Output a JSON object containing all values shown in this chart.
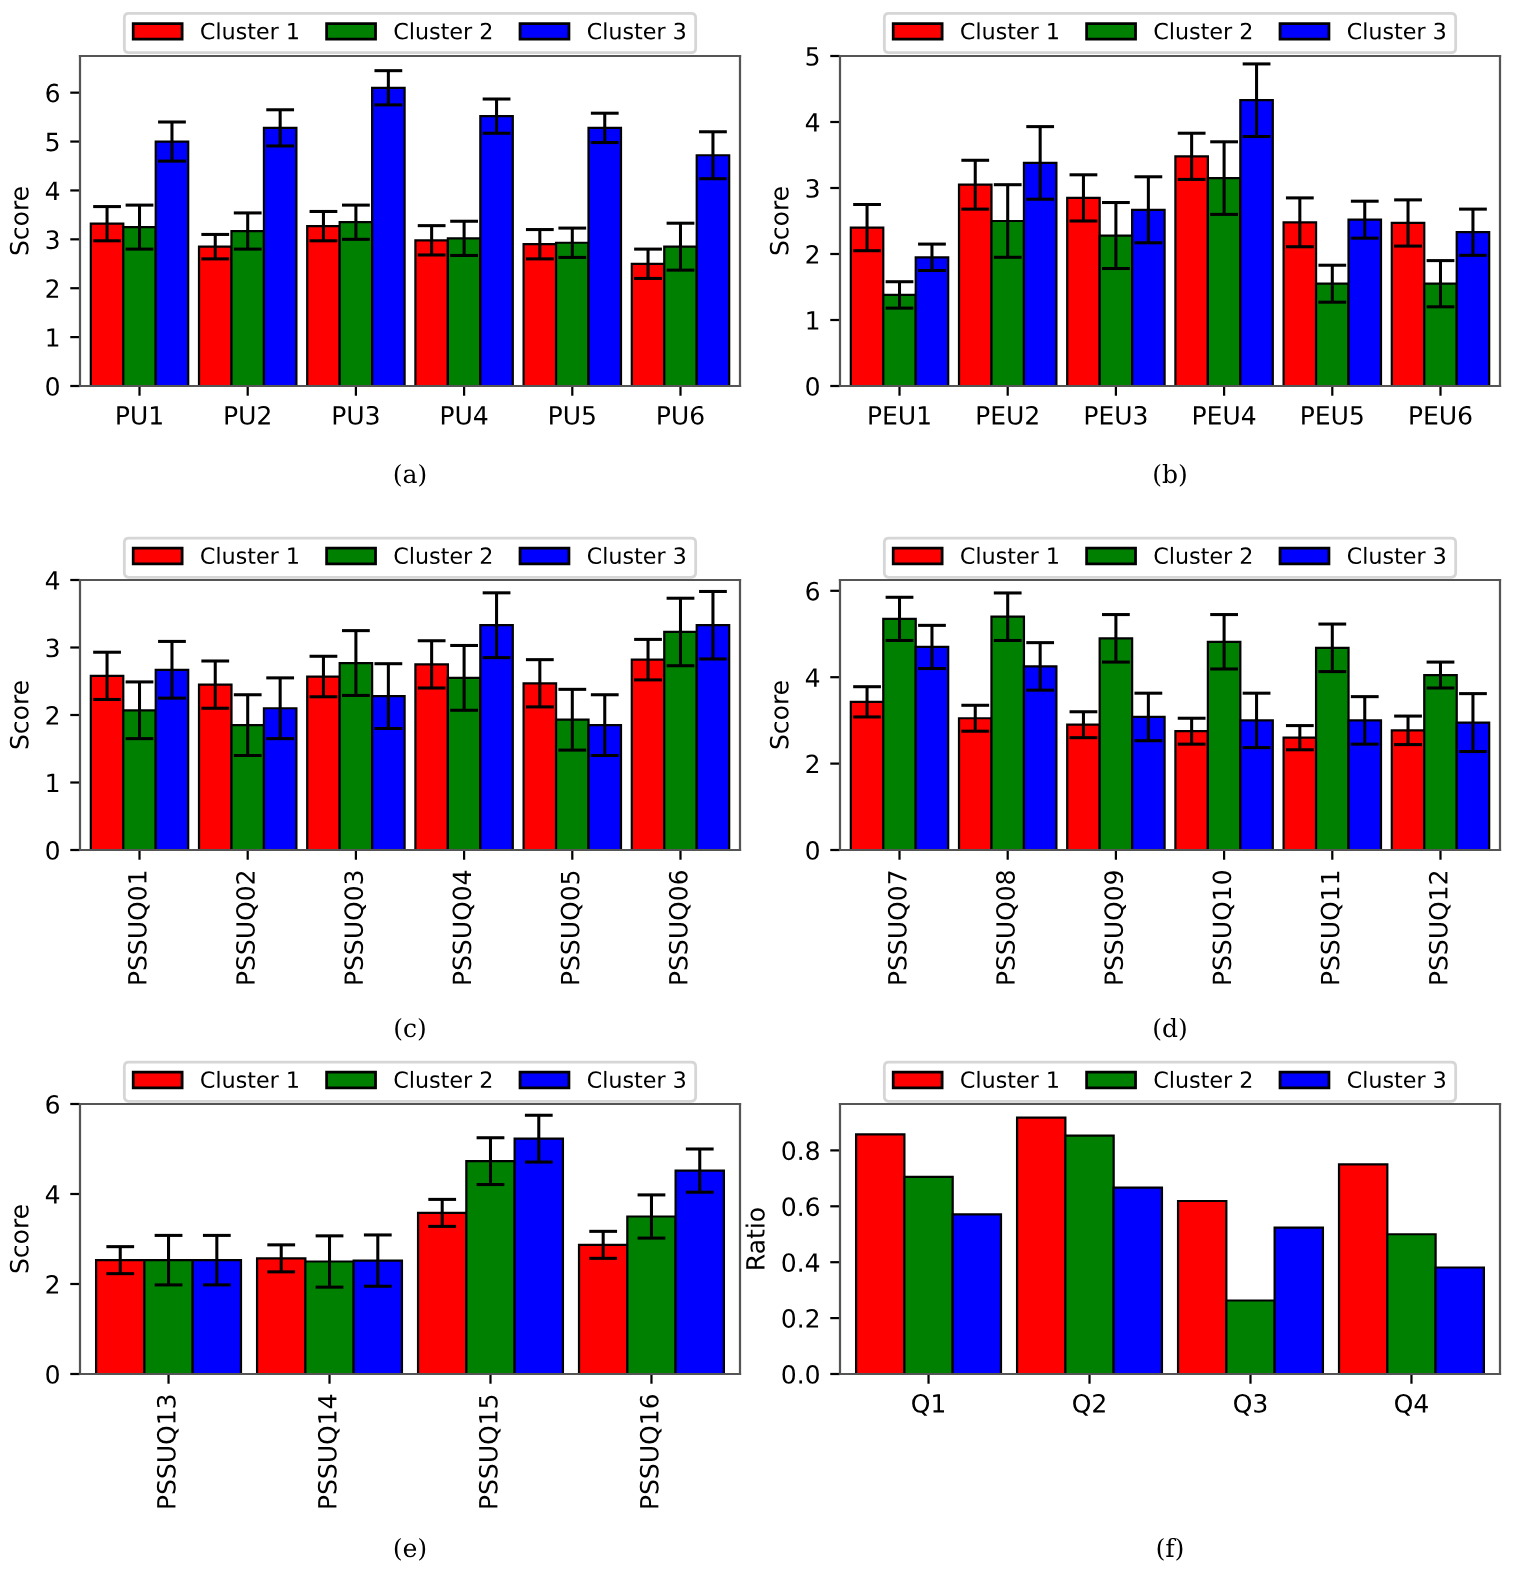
{
  "chart_data": [
    {
      "type": "bar",
      "categories": [
        "PU1",
        "PU2",
        "PU3",
        "PU4",
        "PU5",
        "PU6"
      ],
      "ylabel": "Score",
      "ylim": [
        0,
        6.75
      ],
      "yticks": [
        0,
        1,
        2,
        3,
        4,
        5,
        6
      ],
      "grid": false,
      "legend": "top",
      "annotations": [
        "(a)"
      ],
      "series": [
        {
          "name": "Cluster 1",
          "color": "#ff0000",
          "values": [
            3.32,
            2.85,
            3.27,
            2.98,
            2.9,
            2.5
          ],
          "errors": [
            0.35,
            0.25,
            0.3,
            0.3,
            0.3,
            0.3
          ]
        },
        {
          "name": "Cluster 2",
          "color": "#008000",
          "values": [
            3.25,
            3.17,
            3.35,
            3.02,
            2.93,
            2.85
          ],
          "errors": [
            0.45,
            0.37,
            0.35,
            0.35,
            0.3,
            0.48
          ]
        },
        {
          "name": "Cluster 3",
          "color": "#0000ff",
          "values": [
            5.0,
            5.28,
            6.1,
            5.52,
            5.28,
            4.72
          ],
          "errors": [
            0.4,
            0.37,
            0.35,
            0.35,
            0.3,
            0.48
          ]
        }
      ]
    },
    {
      "type": "bar",
      "categories": [
        "PEU1",
        "PEU2",
        "PEU3",
        "PEU4",
        "PEU5",
        "PEU6"
      ],
      "ylabel": "Score",
      "ylim": [
        0,
        5
      ],
      "yticks": [
        0,
        1,
        2,
        3,
        4,
        5
      ],
      "grid": false,
      "legend": "top",
      "annotations": [
        "(b)"
      ],
      "series": [
        {
          "name": "Cluster 1",
          "color": "#ff0000",
          "values": [
            2.4,
            3.05,
            2.85,
            3.48,
            2.48,
            2.47
          ],
          "errors": [
            0.35,
            0.37,
            0.35,
            0.35,
            0.37,
            0.35
          ]
        },
        {
          "name": "Cluster 2",
          "color": "#008000",
          "values": [
            1.38,
            2.5,
            2.28,
            3.15,
            1.55,
            1.55
          ],
          "errors": [
            0.2,
            0.55,
            0.5,
            0.55,
            0.28,
            0.35
          ]
        },
        {
          "name": "Cluster 3",
          "color": "#0000ff",
          "values": [
            1.95,
            3.38,
            2.67,
            4.33,
            2.52,
            2.33
          ],
          "errors": [
            0.2,
            0.55,
            0.5,
            0.55,
            0.28,
            0.35
          ]
        }
      ]
    },
    {
      "type": "bar",
      "categories": [
        "PSSUQ01",
        "PSSUQ02",
        "PSSUQ03",
        "PSSUQ04",
        "PSSUQ05",
        "PSSUQ06"
      ],
      "ylabel": "Score",
      "ylim": [
        0,
        4
      ],
      "yticks": [
        0,
        1,
        2,
        3,
        4
      ],
      "grid": false,
      "legend": "top",
      "annotations": [
        "(c)"
      ],
      "series": [
        {
          "name": "Cluster 1",
          "color": "#ff0000",
          "values": [
            2.58,
            2.45,
            2.57,
            2.75,
            2.47,
            2.82
          ],
          "errors": [
            0.35,
            0.35,
            0.3,
            0.35,
            0.35,
            0.3
          ]
        },
        {
          "name": "Cluster 2",
          "color": "#008000",
          "values": [
            2.07,
            1.85,
            2.77,
            2.55,
            1.93,
            3.23
          ],
          "errors": [
            0.42,
            0.45,
            0.48,
            0.48,
            0.45,
            0.5
          ]
        },
        {
          "name": "Cluster 3",
          "color": "#0000ff",
          "values": [
            2.67,
            2.1,
            2.28,
            3.33,
            1.85,
            3.33
          ],
          "errors": [
            0.42,
            0.45,
            0.48,
            0.48,
            0.45,
            0.5
          ]
        }
      ]
    },
    {
      "type": "bar",
      "categories": [
        "PSSUQ07",
        "PSSUQ08",
        "PSSUQ09",
        "PSSUQ10",
        "PSSUQ11",
        "PSSUQ12"
      ],
      "ylabel": "Score",
      "ylim": [
        0,
        6.25
      ],
      "yticks": [
        0,
        2,
        4,
        6
      ],
      "grid": false,
      "legend": "top",
      "annotations": [
        "(d)"
      ],
      "series": [
        {
          "name": "Cluster 1",
          "color": "#ff0000",
          "values": [
            3.43,
            3.05,
            2.9,
            2.75,
            2.6,
            2.77
          ],
          "errors": [
            0.35,
            0.3,
            0.3,
            0.3,
            0.28,
            0.33
          ]
        },
        {
          "name": "Cluster 2",
          "color": "#008000",
          "values": [
            5.35,
            5.4,
            4.9,
            4.82,
            4.68,
            4.05
          ],
          "errors": [
            0.5,
            0.55,
            0.55,
            0.63,
            0.55,
            0.3
          ]
        },
        {
          "name": "Cluster 3",
          "color": "#0000ff",
          "values": [
            4.7,
            4.25,
            3.08,
            3.0,
            3.0,
            2.95
          ],
          "errors": [
            0.5,
            0.55,
            0.55,
            0.63,
            0.55,
            0.67
          ]
        }
      ]
    },
    {
      "type": "bar",
      "categories": [
        "PSSUQ13",
        "PSSUQ14",
        "PSSUQ15",
        "PSSUQ16"
      ],
      "ylabel": "Score",
      "ylim": [
        0,
        6
      ],
      "yticks": [
        0,
        2,
        4,
        6
      ],
      "grid": false,
      "legend": "top",
      "annotations": [
        "(e)"
      ],
      "series": [
        {
          "name": "Cluster 1",
          "color": "#ff0000",
          "values": [
            2.53,
            2.57,
            3.58,
            2.87
          ],
          "errors": [
            0.3,
            0.3,
            0.3,
            0.3
          ]
        },
        {
          "name": "Cluster 2",
          "color": "#008000",
          "values": [
            2.53,
            2.5,
            4.73,
            3.5
          ],
          "errors": [
            0.55,
            0.57,
            0.52,
            0.48
          ]
        },
        {
          "name": "Cluster 3",
          "color": "#0000ff",
          "values": [
            2.53,
            2.52,
            5.23,
            4.52
          ],
          "errors": [
            0.55,
            0.57,
            0.52,
            0.48
          ]
        }
      ]
    },
    {
      "type": "bar",
      "categories": [
        "Q1",
        "Q2",
        "Q3",
        "Q4"
      ],
      "ylabel": "Ratio",
      "ylim": [
        0,
        0.966
      ],
      "yticks": [
        {
          "value": 0,
          "label": "0.0"
        },
        0.2,
        0.4,
        0.6,
        0.8
      ],
      "grid": false,
      "legend": "top",
      "annotations": [
        "(f)"
      ],
      "series": [
        {
          "name": "Cluster 1",
          "color": "#ff0000",
          "values": [
            0.857,
            0.917,
            0.619,
            0.75
          ]
        },
        {
          "name": "Cluster 2",
          "color": "#008000",
          "values": [
            0.705,
            0.853,
            0.263,
            0.5
          ]
        },
        {
          "name": "Cluster 3",
          "color": "#0000ff",
          "values": [
            0.571,
            0.667,
            0.524,
            0.381
          ]
        }
      ]
    }
  ]
}
